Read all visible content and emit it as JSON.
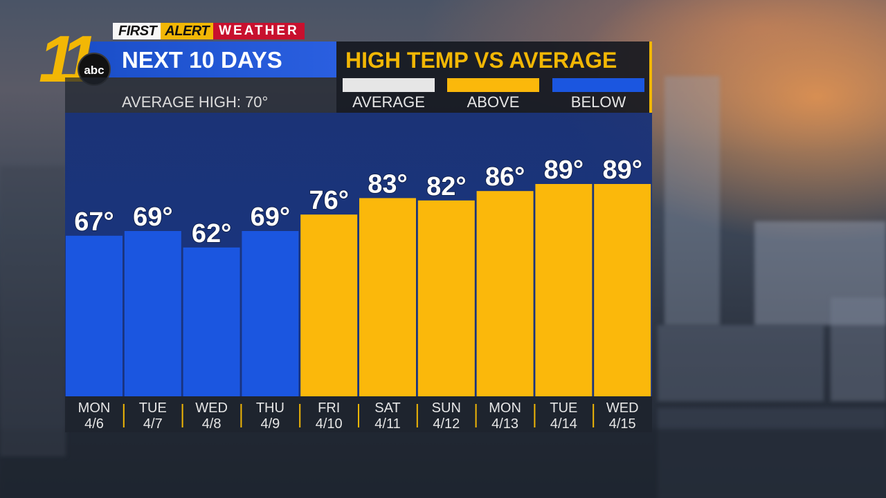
{
  "header": {
    "brand_first": "FIRST",
    "brand_alert": "ALERT",
    "brand_weather": "WEATHER",
    "station_number": "11",
    "network": "abc",
    "title": "NEXT 10 DAYS",
    "subtitle": "AVERAGE HIGH: 70°"
  },
  "legend": {
    "title": "HIGH TEMP VS AVERAGE",
    "items": [
      {
        "label": "AVERAGE",
        "color": "#e6e6e6"
      },
      {
        "label": "ABOVE",
        "color": "#fbb80b"
      },
      {
        "label": "BELOW",
        "color": "#1b56e0"
      }
    ]
  },
  "chart_data": {
    "type": "bar",
    "title": "HIGH TEMP VS AVERAGE",
    "average_high": 70,
    "categories": [
      {
        "day": "MON",
        "date": "4/6"
      },
      {
        "day": "TUE",
        "date": "4/7"
      },
      {
        "day": "WED",
        "date": "4/8"
      },
      {
        "day": "THU",
        "date": "4/9"
      },
      {
        "day": "FRI",
        "date": "4/10"
      },
      {
        "day": "SAT",
        "date": "4/11"
      },
      {
        "day": "SUN",
        "date": "4/12"
      },
      {
        "day": "MON",
        "date": "4/13"
      },
      {
        "day": "TUE",
        "date": "4/14"
      },
      {
        "day": "WED",
        "date": "4/15"
      }
    ],
    "values": [
      67,
      69,
      62,
      69,
      76,
      83,
      82,
      86,
      89,
      89
    ],
    "value_labels": [
      "67°",
      "69°",
      "62°",
      "69°",
      "76°",
      "83°",
      "82°",
      "86°",
      "89°",
      "89°"
    ],
    "colors": {
      "above": "#fbb80b",
      "below": "#1b56e0",
      "average": "#e6e6e6"
    }
  }
}
